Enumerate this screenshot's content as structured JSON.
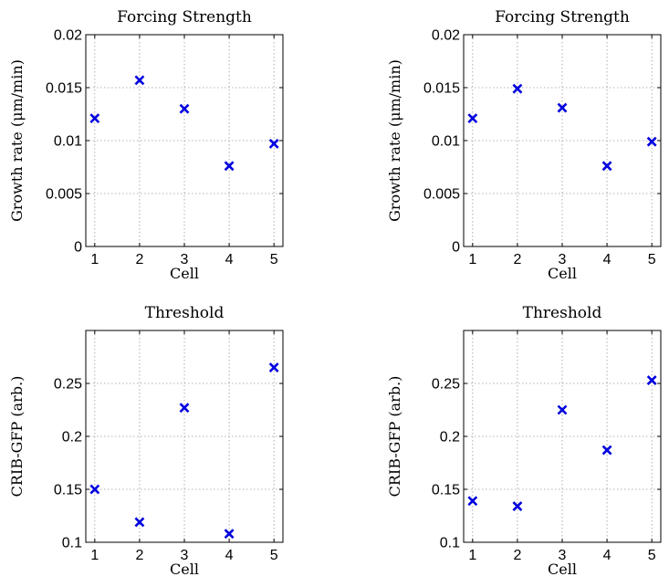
{
  "chart_data": [
    {
      "type": "scatter",
      "title": "Forcing Strength",
      "xlabel": "Cell",
      "ylabel": "Growth rate (μm/min)",
      "x": [
        1,
        2,
        3,
        4,
        5
      ],
      "y": [
        0.0121,
        0.0157,
        0.013,
        0.0076,
        0.0097
      ],
      "xlim": [
        0.8,
        5.2
      ],
      "ylim": [
        0,
        0.02
      ],
      "xticks": [
        1,
        2,
        3,
        4,
        5
      ],
      "xtick_labels": [
        "1",
        "2",
        "3",
        "4",
        "5"
      ],
      "yticks": [
        0,
        0.005,
        0.01,
        0.015,
        0.02
      ],
      "ytick_labels": [
        "0",
        "0.005",
        "0.01",
        "0.015",
        "0.02"
      ],
      "grid": true,
      "marker": "x",
      "color": "#0000e0"
    },
    {
      "type": "scatter",
      "title": "Forcing Strength",
      "xlabel": "Cell",
      "ylabel": "Growth rate (μm/min)",
      "x": [
        1,
        2,
        3,
        4,
        5
      ],
      "y": [
        0.0121,
        0.0149,
        0.0131,
        0.0076,
        0.0099
      ],
      "xlim": [
        0.8,
        5.2
      ],
      "ylim": [
        0,
        0.02
      ],
      "xticks": [
        1,
        2,
        3,
        4,
        5
      ],
      "xtick_labels": [
        "1",
        "2",
        "3",
        "4",
        "5"
      ],
      "yticks": [
        0,
        0.005,
        0.01,
        0.015,
        0.02
      ],
      "ytick_labels": [
        "0",
        "0.005",
        "0.01",
        "0.015",
        "0.02"
      ],
      "grid": true,
      "marker": "x",
      "color": "#0000e0"
    },
    {
      "type": "scatter",
      "title": "Threshold",
      "xlabel": "Cell",
      "ylabel": "CRIB-GFP (arb.)",
      "x": [
        1,
        2,
        3,
        4,
        5
      ],
      "y": [
        0.15,
        0.119,
        0.227,
        0.108,
        0.265
      ],
      "xlim": [
        0.8,
        5.2
      ],
      "ylim": [
        0.1,
        0.3
      ],
      "xticks": [
        1,
        2,
        3,
        4,
        5
      ],
      "xtick_labels": [
        "1",
        "2",
        "3",
        "4",
        "5"
      ],
      "yticks": [
        0.1,
        0.15,
        0.2,
        0.25
      ],
      "ytick_labels": [
        "0.1",
        "0.15",
        "0.2",
        "0.25"
      ],
      "grid": true,
      "marker": "x",
      "color": "#0000e0"
    },
    {
      "type": "scatter",
      "title": "Threshold",
      "xlabel": "Cell",
      "ylabel": "CRIB-GFP (arb.)",
      "x": [
        1,
        2,
        3,
        4,
        5
      ],
      "y": [
        0.139,
        0.134,
        0.225,
        0.187,
        0.253
      ],
      "xlim": [
        0.8,
        5.2
      ],
      "ylim": [
        0.1,
        0.3
      ],
      "xticks": [
        1,
        2,
        3,
        4,
        5
      ],
      "xtick_labels": [
        "1",
        "2",
        "3",
        "4",
        "5"
      ],
      "yticks": [
        0.1,
        0.15,
        0.2,
        0.25
      ],
      "ytick_labels": [
        "0.1",
        "0.15",
        "0.2",
        "0.25"
      ],
      "grid": true,
      "marker": "x",
      "color": "#0000e0"
    }
  ]
}
